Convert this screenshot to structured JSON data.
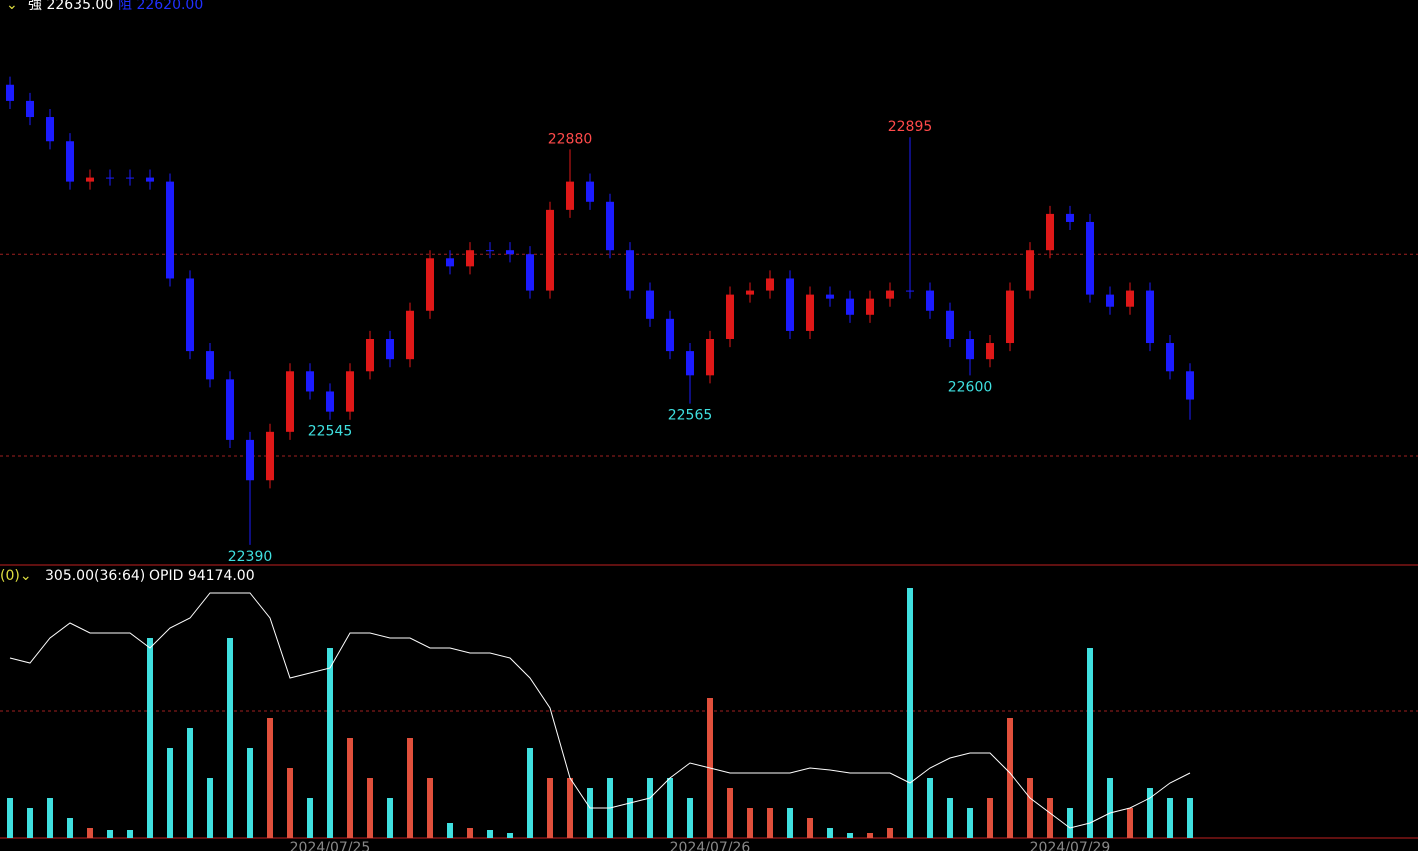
{
  "legend_top": {
    "arrow": "⌄",
    "strong": "強 22635.00",
    "resist": "阻 22620.00"
  },
  "legend_bottom": {
    "period": "(0)⌄",
    "value": "305.00(36:64)",
    "opid": "OPID 94174.00"
  },
  "chart_data": [
    {
      "type": "candlestick",
      "up_color": "#e01818",
      "down_color": "#1c1cff",
      "ylim": [
        22365,
        23065
      ],
      "ref_lines": [
        22750,
        22500
      ],
      "categories": [
        null,
        null,
        null,
        null,
        null,
        null,
        null,
        null,
        null,
        null,
        null,
        null,
        null,
        null,
        null,
        null,
        "2024/07/25",
        null,
        null,
        null,
        null,
        null,
        null,
        null,
        null,
        null,
        null,
        null,
        null,
        null,
        null,
        null,
        null,
        null,
        null,
        "2024/07/26",
        null,
        null,
        null,
        null,
        null,
        null,
        null,
        null,
        null,
        null,
        null,
        null,
        null,
        null,
        null,
        null,
        null,
        "2024/07/29",
        null,
        null,
        null,
        null,
        null,
        null
      ],
      "open": [
        22960,
        22940,
        22920,
        22890,
        22840,
        22845,
        22845,
        22845,
        22840,
        22720,
        22630,
        22595,
        22520,
        22470,
        22530,
        22605,
        22580,
        22555,
        22605,
        22645,
        22620,
        22680,
        22745,
        22735,
        22755,
        22755,
        22750,
        22705,
        22805,
        22840,
        22815,
        22755,
        22705,
        22670,
        22630,
        22600,
        22645,
        22700,
        22705,
        22720,
        22655,
        22700,
        22695,
        22675,
        22695,
        22705,
        22705,
        22680,
        22645,
        22620,
        22640,
        22705,
        22755,
        22800,
        22790,
        22700,
        22685,
        22705,
        22640,
        22605
      ],
      "high": [
        22970,
        22950,
        22930,
        22900,
        22855,
        22855,
        22855,
        22855,
        22850,
        22730,
        22640,
        22605,
        22530,
        22540,
        22615,
        22615,
        22590,
        22615,
        22655,
        22655,
        22690,
        22755,
        22755,
        22765,
        22765,
        22765,
        22760,
        22815,
        22880,
        22850,
        22825,
        22765,
        22715,
        22680,
        22640,
        22655,
        22710,
        22715,
        22730,
        22730,
        22710,
        22710,
        22705,
        22705,
        22715,
        22895,
        22715,
        22690,
        22655,
        22650,
        22715,
        22765,
        22810,
        22810,
        22800,
        22710,
        22715,
        22715,
        22650,
        22615
      ],
      "low": [
        22930,
        22910,
        22880,
        22830,
        22830,
        22835,
        22835,
        22830,
        22710,
        22620,
        22585,
        22510,
        22390,
        22460,
        22520,
        22570,
        22545,
        22545,
        22595,
        22610,
        22610,
        22670,
        22725,
        22725,
        22745,
        22740,
        22695,
        22695,
        22795,
        22805,
        22745,
        22695,
        22660,
        22620,
        22565,
        22590,
        22635,
        22690,
        22695,
        22645,
        22645,
        22685,
        22665,
        22665,
        22685,
        22695,
        22670,
        22635,
        22600,
        22610,
        22630,
        22695,
        22745,
        22780,
        22690,
        22675,
        22675,
        22630,
        22595,
        22545
      ],
      "close": [
        22940,
        22920,
        22890,
        22840,
        22845,
        22845,
        22845,
        22840,
        22720,
        22630,
        22595,
        22520,
        22470,
        22530,
        22605,
        22580,
        22555,
        22605,
        22645,
        22620,
        22680,
        22745,
        22735,
        22755,
        22755,
        22750,
        22705,
        22805,
        22840,
        22815,
        22755,
        22705,
        22670,
        22630,
        22600,
        22645,
        22700,
        22705,
        22720,
        22655,
        22700,
        22695,
        22675,
        22695,
        22705,
        22705,
        22680,
        22645,
        22620,
        22640,
        22705,
        22755,
        22800,
        22790,
        22700,
        22685,
        22705,
        22640,
        22605,
        22570
      ],
      "high_labels": [
        22880,
        22895
      ],
      "high_label_color": "#ff4a4a",
      "low_labels": [
        22390,
        22565,
        22600,
        22545
      ],
      "low_label_color": "#3fe0e0"
    },
    {
      "type": "volume",
      "up_color": "#e0503c",
      "down_color": "#40e0e0",
      "line_color": "#ffffff",
      "ylim": [
        0,
        270
      ],
      "y2lim": [
        0,
        270
      ],
      "ref_lines": [
        127
      ],
      "values": [
        40,
        30,
        40,
        20,
        10,
        8,
        8,
        200,
        90,
        110,
        60,
        200,
        90,
        120,
        70,
        40,
        190,
        100,
        60,
        40,
        100,
        60,
        15,
        10,
        8,
        5,
        90,
        60,
        60,
        50,
        60,
        40,
        60,
        60,
        40,
        140,
        50,
        30,
        30,
        30,
        20,
        10,
        5,
        5,
        10,
        250,
        60,
        40,
        30,
        40,
        120,
        60,
        40,
        30,
        190,
        60,
        30,
        50,
        40,
        40
      ],
      "line_values": [
        180,
        175,
        200,
        215,
        205,
        205,
        205,
        190,
        210,
        220,
        245,
        245,
        245,
        220,
        160,
        165,
        170,
        205,
        205,
        200,
        200,
        190,
        190,
        185,
        185,
        180,
        160,
        130,
        60,
        30,
        30,
        35,
        40,
        60,
        75,
        70,
        65,
        65,
        65,
        65,
        70,
        68,
        65,
        65,
        65,
        55,
        70,
        80,
        85,
        85,
        65,
        40,
        25,
        10,
        15,
        25,
        30,
        40,
        55,
        65
      ]
    }
  ]
}
